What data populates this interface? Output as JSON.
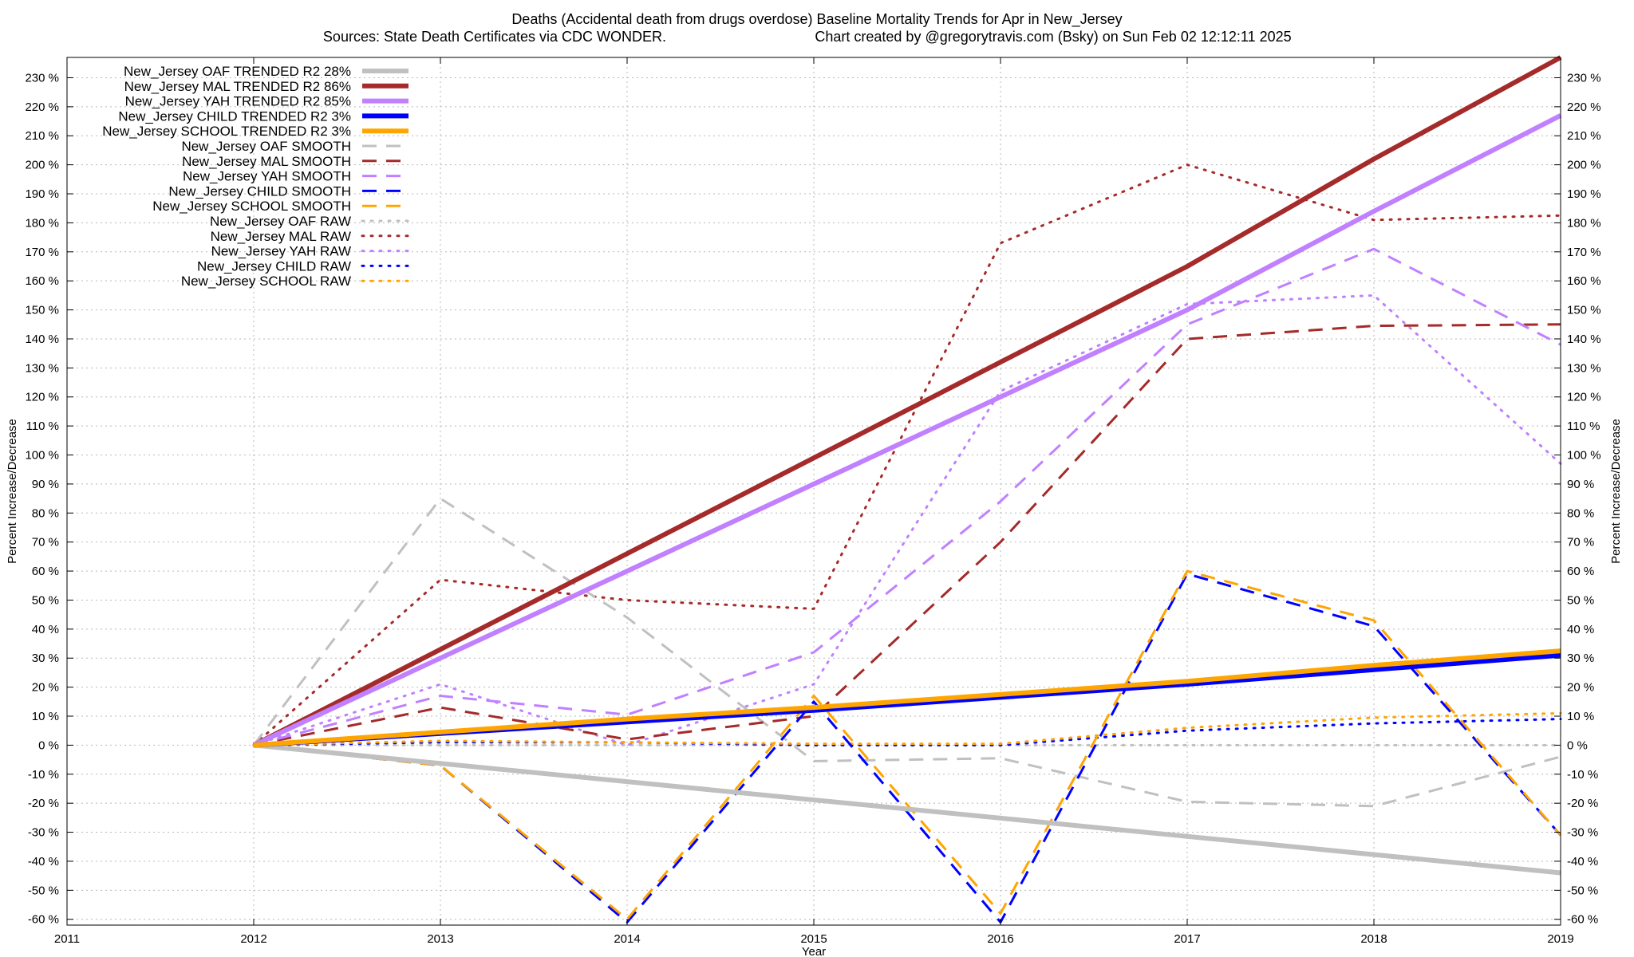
{
  "chart_data": {
    "type": "line",
    "title_line1": "Deaths (Accidental death from drugs overdose)  Baseline Mortality Trends for Apr in New_Jersey",
    "title_line2_left": "Sources: State Death Certificates via CDC WONDER.",
    "title_line2_right": "Chart created by @gregorytravis.com (Bsky) on Sun Feb 02 12:12:11 2025",
    "xlabel": "Year",
    "ylabel_left": "Percent Increase/Decrease",
    "ylabel_right": "Percent Increase/Decrease",
    "xlim": [
      2011,
      2019
    ],
    "ylim": [
      -62,
      237
    ],
    "x_ticks": [
      2011,
      2012,
      2013,
      2014,
      2015,
      2016,
      2017,
      2018,
      2019
    ],
    "y_ticks": [
      -60,
      -50,
      -40,
      -30,
      -20,
      -10,
      0,
      10,
      20,
      30,
      40,
      50,
      60,
      70,
      80,
      90,
      100,
      110,
      120,
      130,
      140,
      150,
      160,
      170,
      180,
      190,
      200,
      210,
      220,
      230
    ],
    "y_tick_suffix": " %",
    "grid": true,
    "legend_position": "top-left",
    "series": [
      {
        "name": "New_Jersey OAF TRENDED R2  28%",
        "style": "solid",
        "color": "#c0c0c0",
        "x": [
          2012,
          2019
        ],
        "y": [
          0,
          -44
        ]
      },
      {
        "name": "New_Jersey MAL TRENDED R2  86%",
        "style": "solid",
        "color": "#a52a2a",
        "x": [
          2012,
          2013,
          2014,
          2015,
          2016,
          2017,
          2018,
          2019
        ],
        "y": [
          0,
          33,
          66,
          99,
          132,
          165,
          202,
          237
        ]
      },
      {
        "name": "New_Jersey YAH TRENDED R2  85%",
        "style": "solid",
        "color": "#c080ff",
        "x": [
          2012,
          2013,
          2014,
          2015,
          2016,
          2017,
          2018,
          2019
        ],
        "y": [
          0,
          30,
          60,
          90,
          120,
          150,
          184,
          217
        ]
      },
      {
        "name": "New_Jersey CHILD TRENDED R2   3%",
        "style": "solid",
        "color": "#0000ff",
        "x": [
          2012,
          2013,
          2014,
          2015,
          2016,
          2017,
          2018,
          2019
        ],
        "y": [
          0,
          4,
          8,
          12,
          16.5,
          21,
          26,
          31
        ]
      },
      {
        "name": "New_Jersey SCHOOL TRENDED R2   3%",
        "style": "solid",
        "color": "#ffa500",
        "x": [
          2012,
          2013,
          2014,
          2015,
          2016,
          2017,
          2018,
          2019
        ],
        "y": [
          0,
          4.5,
          9,
          13,
          17.5,
          22,
          27.5,
          32.5
        ]
      },
      {
        "name": "New_Jersey OAF SMOOTH",
        "style": "dashed",
        "color": "#c0c0c0",
        "x": [
          2012,
          2013,
          2014,
          2015,
          2016,
          2017,
          2018,
          2019
        ],
        "y": [
          0,
          85,
          44,
          -5.5,
          -4.5,
          -19.5,
          -21,
          -4
        ]
      },
      {
        "name": "New_Jersey MAL SMOOTH",
        "style": "dashed",
        "color": "#a52a2a",
        "x": [
          2012,
          2013,
          2014,
          2015,
          2016,
          2017,
          2018,
          2019
        ],
        "y": [
          0,
          13,
          2,
          10,
          70,
          140,
          144.5,
          145
        ]
      },
      {
        "name": "New_Jersey YAH SMOOTH",
        "style": "dashed",
        "color": "#c080ff",
        "x": [
          2012,
          2013,
          2014,
          2015,
          2016,
          2017,
          2018,
          2019
        ],
        "y": [
          0,
          17,
          10.5,
          32,
          84,
          145,
          171,
          138
        ]
      },
      {
        "name": "New_Jersey CHILD SMOOTH",
        "style": "dashed",
        "color": "#0000ff",
        "x": [
          2012,
          2013,
          2014,
          2015,
          2016,
          2017,
          2018,
          2019
        ],
        "y": [
          0,
          -7,
          -61,
          15,
          -61,
          59,
          41,
          -31
        ]
      },
      {
        "name": "New_Jersey SCHOOL SMOOTH",
        "style": "dashed",
        "color": "#ffa500",
        "x": [
          2012,
          2013,
          2014,
          2015,
          2016,
          2017,
          2018,
          2019
        ],
        "y": [
          0,
          -7,
          -60,
          17,
          -58,
          60,
          43,
          -31
        ]
      },
      {
        "name": "New_Jersey OAF RAW",
        "style": "dotted",
        "color": "#c0c0c0",
        "x": [
          2012,
          2013,
          2014,
          2015,
          2016,
          2017,
          2018,
          2019
        ],
        "y": [
          0,
          0,
          0,
          0,
          0,
          0,
          0,
          0
        ]
      },
      {
        "name": "New_Jersey MAL RAW",
        "style": "dotted",
        "color": "#a52a2a",
        "x": [
          2012,
          2013,
          2014,
          2015,
          2016,
          2017,
          2018,
          2019
        ],
        "y": [
          0,
          57,
          50,
          47,
          173,
          200,
          181,
          182.5
        ]
      },
      {
        "name": "New_Jersey YAH RAW",
        "style": "dotted",
        "color": "#c080ff",
        "x": [
          2012,
          2013,
          2014,
          2015,
          2016,
          2017,
          2018,
          2019
        ],
        "y": [
          0,
          21,
          0,
          21,
          122,
          152,
          155,
          97
        ]
      },
      {
        "name": "New_Jersey CHILD RAW",
        "style": "dotted",
        "color": "#0000ff",
        "x": [
          2012,
          2013,
          2014,
          2015,
          2016,
          2017,
          2018,
          2019
        ],
        "y": [
          0,
          1,
          1,
          0,
          0,
          5,
          7.5,
          9
        ]
      },
      {
        "name": "New_Jersey SCHOOL RAW",
        "style": "dotted",
        "color": "#ffa500",
        "x": [
          2012,
          2013,
          2014,
          2015,
          2016,
          2017,
          2018,
          2019
        ],
        "y": [
          0,
          1.5,
          1,
          0.5,
          0.5,
          6,
          9.5,
          11
        ]
      }
    ]
  }
}
